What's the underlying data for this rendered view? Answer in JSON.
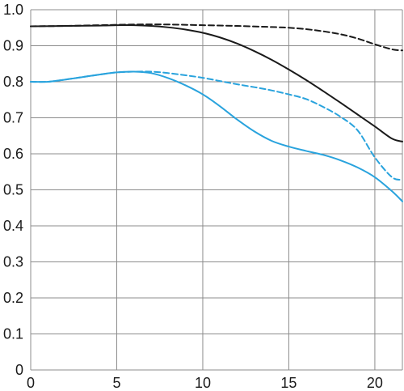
{
  "chart_data": {
    "type": "line",
    "title": "",
    "xlabel": "",
    "ylabel": "",
    "xlim": [
      0,
      21.6
    ],
    "ylim": [
      0,
      1.0
    ],
    "grid": true,
    "legend": "none",
    "x_ticks": [
      0,
      5,
      10,
      15,
      20
    ],
    "y_ticks": [
      0,
      0.1,
      0.2,
      0.3,
      0.4,
      0.5,
      0.6,
      0.7,
      0.8,
      0.9,
      1.0
    ],
    "x_tick_labels": [
      "0",
      "5",
      "10",
      "15",
      "20"
    ],
    "y_tick_labels": [
      "0",
      "0.1",
      "0.2",
      "0.3",
      "0.4",
      "0.5",
      "0.6",
      "0.7",
      "0.8",
      "0.9",
      "1.0"
    ],
    "series": [
      {
        "color": "#1a1a1a",
        "style": "solid",
        "x": [
          0,
          2,
          4,
          5,
          6,
          7,
          8,
          9,
          10,
          11,
          12,
          13,
          14,
          15,
          16,
          17,
          18,
          19,
          20,
          21,
          21.6
        ],
        "y": [
          0.954,
          0.955,
          0.956,
          0.957,
          0.957,
          0.955,
          0.951,
          0.945,
          0.936,
          0.923,
          0.906,
          0.885,
          0.861,
          0.834,
          0.805,
          0.774,
          0.742,
          0.709,
          0.676,
          0.642,
          0.634
        ]
      },
      {
        "color": "#1a1a1a",
        "style": "dashed",
        "x": [
          0,
          2,
          4,
          6,
          8,
          10,
          12,
          14,
          15,
          16,
          17,
          18,
          19,
          20,
          21,
          21.6
        ],
        "y": [
          0.954,
          0.955,
          0.957,
          0.959,
          0.959,
          0.957,
          0.955,
          0.952,
          0.95,
          0.946,
          0.94,
          0.932,
          0.92,
          0.904,
          0.89,
          0.887
        ]
      },
      {
        "color": "#29a3dd",
        "style": "solid",
        "x": [
          0,
          1,
          2,
          3,
          4,
          5,
          6,
          7,
          8,
          9,
          10,
          11,
          12,
          13,
          14,
          15,
          16,
          17,
          18,
          19,
          20,
          21,
          21.6
        ],
        "y": [
          0.8,
          0.8,
          0.806,
          0.813,
          0.82,
          0.826,
          0.828,
          0.824,
          0.81,
          0.79,
          0.765,
          0.732,
          0.695,
          0.662,
          0.636,
          0.62,
          0.608,
          0.597,
          0.582,
          0.562,
          0.535,
          0.496,
          0.468
        ]
      },
      {
        "color": "#29a3dd",
        "style": "dashed",
        "x": [
          0,
          1,
          2,
          3,
          4,
          5,
          6,
          7,
          8,
          9,
          10,
          11,
          12,
          13,
          14,
          15,
          16,
          17,
          18,
          19,
          20,
          21,
          21.6
        ],
        "y": [
          0.8,
          0.8,
          0.806,
          0.813,
          0.82,
          0.826,
          0.828,
          0.828,
          0.824,
          0.818,
          0.811,
          0.802,
          0.793,
          0.785,
          0.776,
          0.765,
          0.752,
          0.73,
          0.703,
          0.665,
          0.59,
          0.535,
          0.528
        ]
      }
    ]
  }
}
